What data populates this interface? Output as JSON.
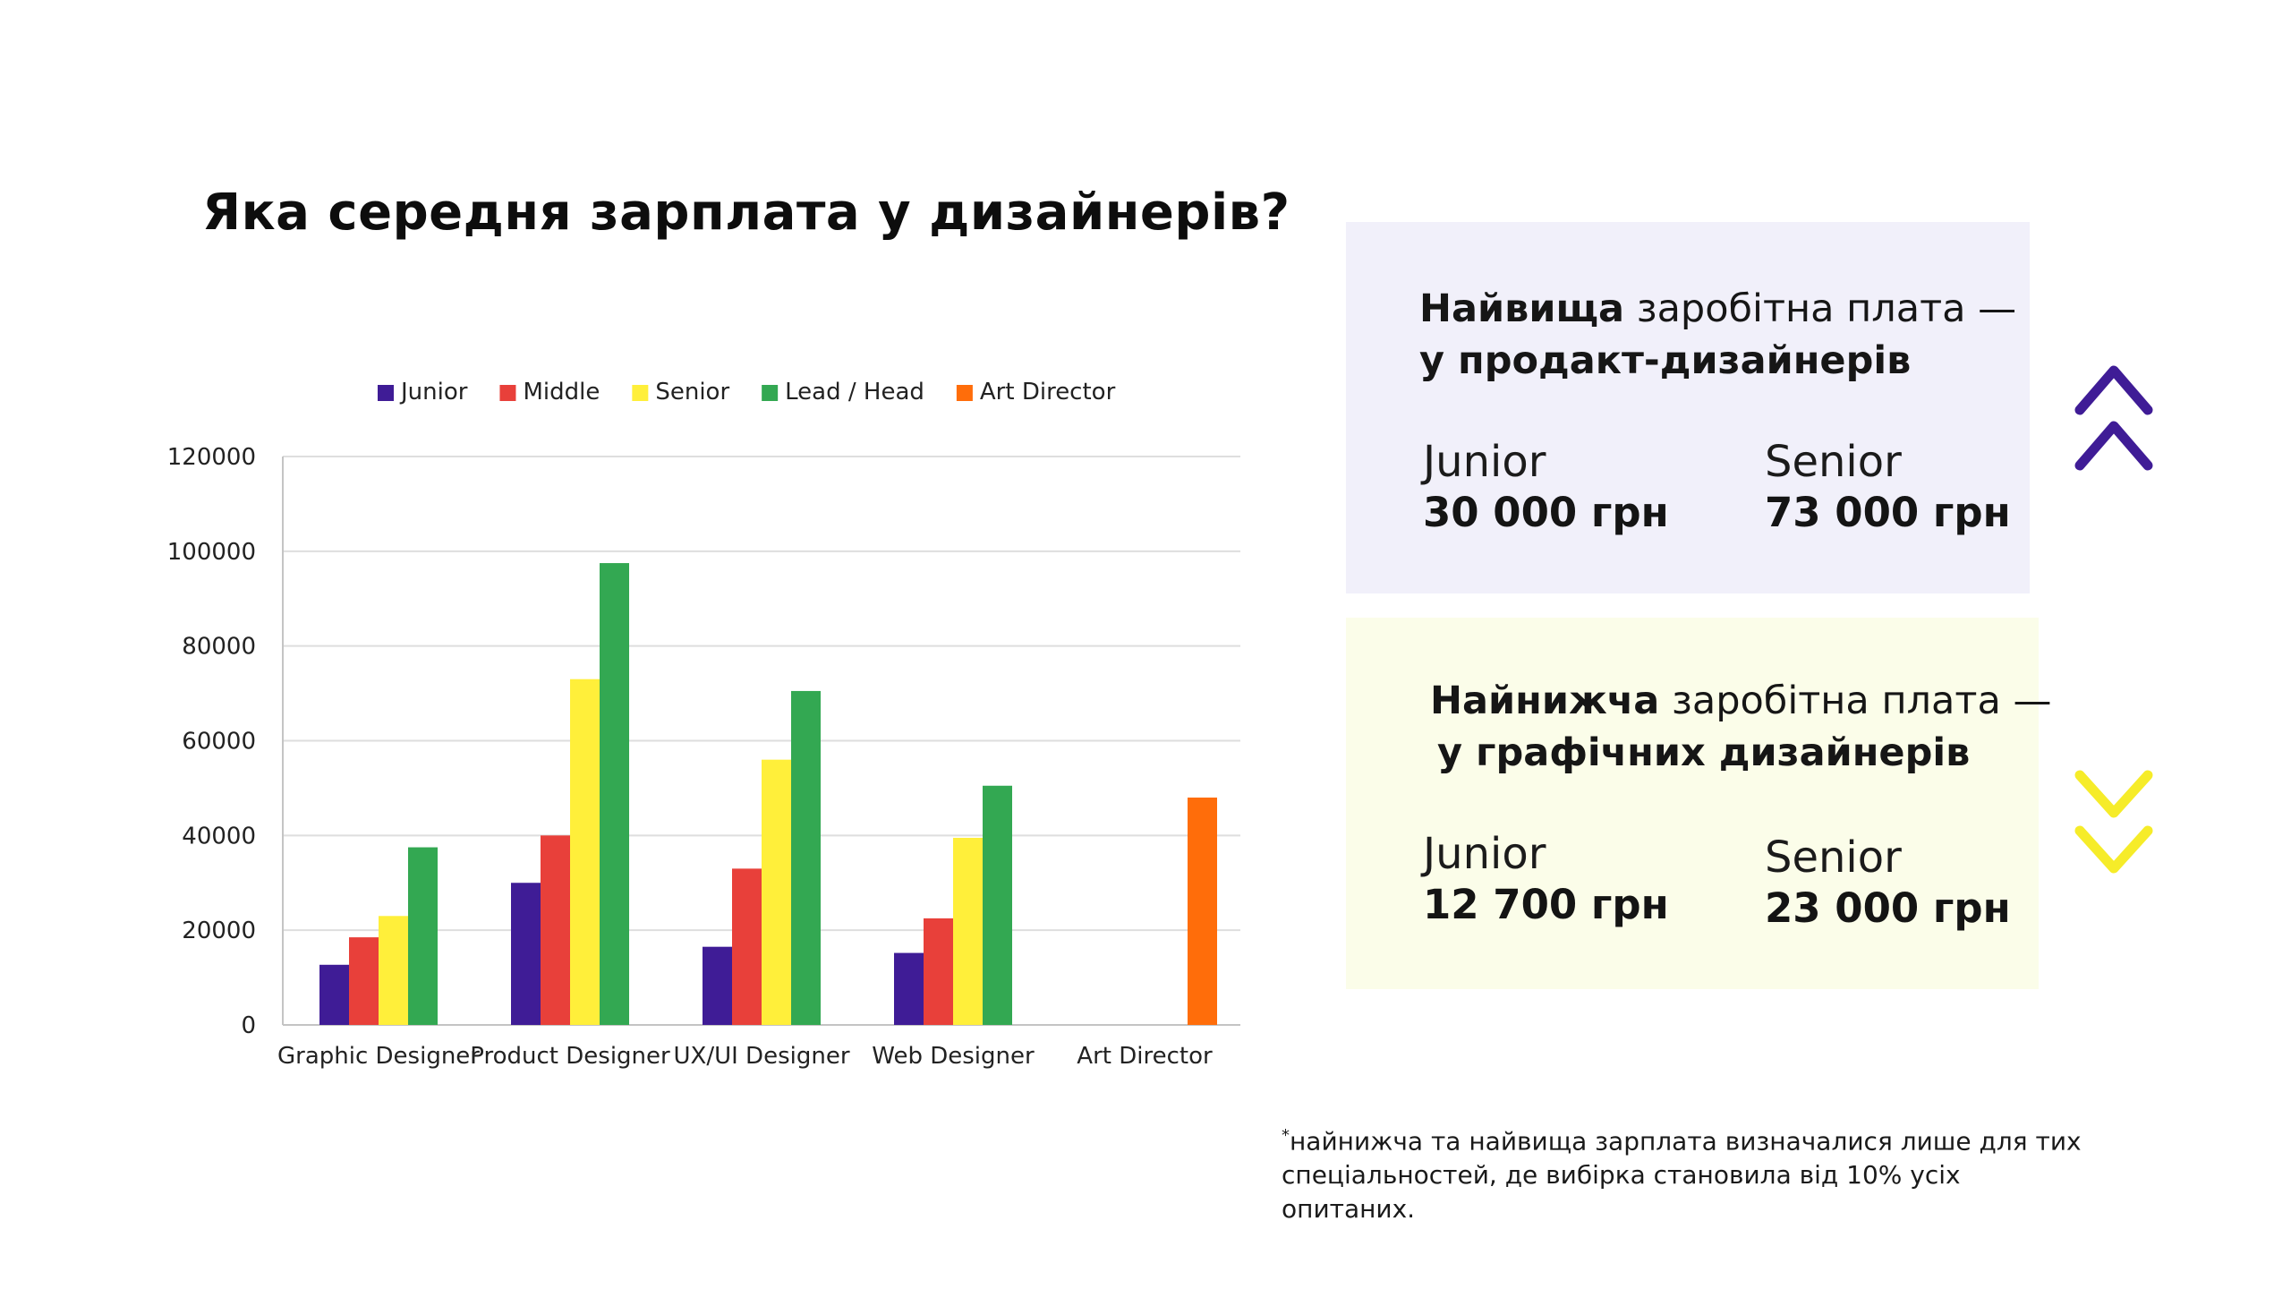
{
  "title": "Яка середня зарплата у дизайнерів?",
  "chart_data": {
    "type": "bar",
    "categories": [
      "Graphic Designer",
      "Product Designer",
      "UX/UI Designer",
      "Web Designer",
      "Art Director"
    ],
    "series": [
      {
        "name": "Junior",
        "color": "#3f1c96",
        "values": [
          12700,
          30000,
          16500,
          15200,
          null
        ]
      },
      {
        "name": "Middle",
        "color": "#e8403a",
        "values": [
          18500,
          40000,
          33000,
          22500,
          null
        ]
      },
      {
        "name": "Senior",
        "color": "#ffef3a",
        "values": [
          23000,
          73000,
          56000,
          39500,
          null
        ]
      },
      {
        "name": "Lead / Head",
        "color": "#33a852",
        "values": [
          37500,
          97500,
          70500,
          50500,
          null
        ]
      },
      {
        "name": "Art Director",
        "color": "#ff6d0a",
        "values": [
          null,
          null,
          null,
          null,
          48000
        ]
      }
    ],
    "yticks": [
      0,
      20000,
      40000,
      60000,
      80000,
      100000,
      120000
    ],
    "ylim": [
      0,
      120000
    ],
    "xlabel": "",
    "ylabel": "",
    "grid": true,
    "legend_position": "top"
  },
  "highest": {
    "heading_bold": "Найвища",
    "heading_rest": " заробітна плата  —",
    "heading_line2": "у продакт-дизайнерів",
    "junior_label": "Junior",
    "junior_value": "30 000 грн",
    "senior_label": "Senior",
    "senior_value": "73 000 грн",
    "background": "#f1f0fa",
    "chevron_color": "#3f1c96",
    "chevron_icon": "double-chevron-up-icon"
  },
  "lowest": {
    "heading_bold": "Найнижча",
    "heading_rest": " заробітна плата —",
    "heading_line2": "у графічних дизайнерів",
    "junior_label": "Junior",
    "junior_value": "12 700 грн",
    "senior_label": "Senior",
    "senior_value": "23 000 грн",
    "background": "#fbfde9",
    "chevron_color": "#f6ec29",
    "chevron_icon": "double-chevron-down-icon"
  },
  "footnote": {
    "mark": "*",
    "text": "найнижча та найвища зарплата визначалися лише для тих спеціальностей, де вибірка становила від 10% усіх опитаних."
  }
}
